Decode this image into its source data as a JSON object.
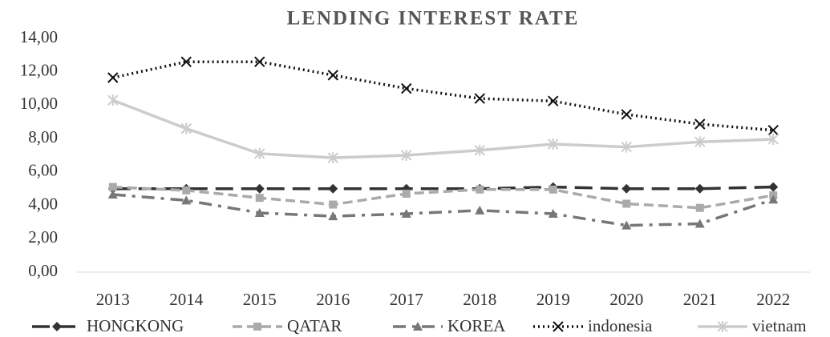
{
  "chart_data": {
    "type": "line",
    "title": "LENDING INTEREST RATE",
    "categories": [
      "2013",
      "2014",
      "2015",
      "2016",
      "2017",
      "2018",
      "2019",
      "2020",
      "2021",
      "2022"
    ],
    "ylim": [
      0,
      14
    ],
    "yticks": [
      {
        "value": 0,
        "label": "0,00"
      },
      {
        "value": 2,
        "label": "2,00"
      },
      {
        "value": 4,
        "label": "4,00"
      },
      {
        "value": 6,
        "label": "6,00"
      },
      {
        "value": 8,
        "label": "8,00"
      },
      {
        "value": 10,
        "label": "10,00"
      },
      {
        "value": 12,
        "label": "12,00"
      },
      {
        "value": 14,
        "label": "14,00"
      }
    ],
    "grid": false,
    "legend": "bottom",
    "series": [
      {
        "name": "HONGKONG",
        "color": "#333333",
        "dash": "22 10",
        "marker": "diamond",
        "values": [
          5.0,
          5.0,
          5.0,
          5.0,
          5.0,
          5.0,
          5.1,
          5.0,
          5.0,
          5.1
        ]
      },
      {
        "name": "QATAR",
        "color": "#aaaaaa",
        "dash": "12 6",
        "marker": "square",
        "values": [
          5.1,
          4.9,
          4.45,
          4.05,
          4.7,
          4.95,
          4.95,
          4.1,
          3.85,
          4.6
        ]
      },
      {
        "name": "KOREA",
        "color": "#777777",
        "dash": "16 8 4 8",
        "marker": "triangle",
        "values": [
          4.65,
          4.3,
          3.55,
          3.35,
          3.5,
          3.7,
          3.5,
          2.8,
          2.9,
          4.35
        ]
      },
      {
        "name": "indonesia",
        "color": "#111111",
        "dash": "2 4",
        "marker": "x",
        "values": [
          11.65,
          12.6,
          12.6,
          11.8,
          11.0,
          10.4,
          10.25,
          9.45,
          8.87,
          8.5
        ]
      },
      {
        "name": "vietnam",
        "color": "#cccccc",
        "dash": "",
        "marker": "star",
        "values": [
          10.3,
          8.6,
          7.1,
          6.85,
          7.0,
          7.3,
          7.67,
          7.5,
          7.8,
          7.96
        ]
      }
    ]
  }
}
